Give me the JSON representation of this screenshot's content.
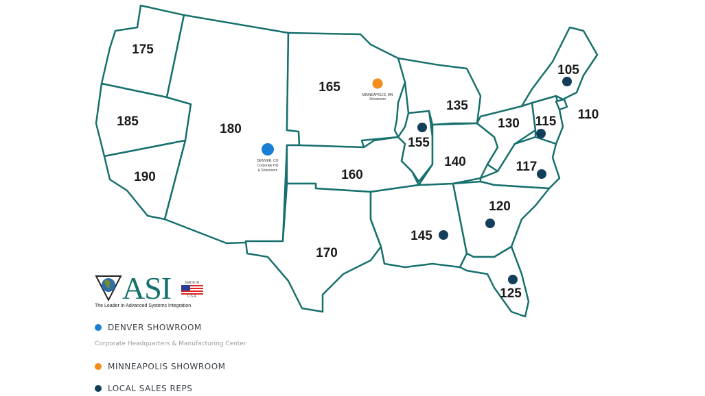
{
  "map": {
    "regions": [
      {
        "id": "northwest",
        "label": "175"
      },
      {
        "id": "northern-california",
        "label": "185"
      },
      {
        "id": "southern-california",
        "label": "190"
      },
      {
        "id": "mountain",
        "label": "180"
      },
      {
        "id": "northern-plains",
        "label": "165"
      },
      {
        "id": "central-plains",
        "label": "160"
      },
      {
        "id": "south-central",
        "label": "170"
      },
      {
        "id": "deep-south",
        "label": "145"
      },
      {
        "id": "illinois",
        "label": "155"
      },
      {
        "id": "great-lakes",
        "label": "135"
      },
      {
        "id": "ohio-valley",
        "label": "140"
      },
      {
        "id": "mid-atlantic-west",
        "label": "130"
      },
      {
        "id": "mid-atlantic-east",
        "label": "115"
      },
      {
        "id": "virginia-carolina",
        "label": "117"
      },
      {
        "id": "southeast",
        "label": "120"
      },
      {
        "id": "florida",
        "label": "125"
      },
      {
        "id": "new-england",
        "label": "105"
      },
      {
        "id": "new-york-metro",
        "label": "110"
      }
    ],
    "denver_marker": {
      "line1": "DENVER, CO",
      "line2": "Corporate HQ",
      "line3": "& Showroom",
      "color": "#1a7fd4"
    },
    "minneapolis_marker": {
      "line1": "MINNEAPOLIS, MN",
      "line2": "Showroom",
      "color": "#f28c1a"
    },
    "rep_color": "#123e5a",
    "border_color": "#17706e"
  },
  "logo": {
    "text": "ASI",
    "tagline": "The Leader In Advanced Systems Integration",
    "made_in": "MADE IN",
    "usa": "U.S.A."
  },
  "legend": {
    "denver": "DENVER SHOWROOM",
    "denver_sub": "Corporate Headquarters & Manufacturing Center",
    "minneapolis": "MINNEAPOLIS SHOWROOM",
    "reps": "LOCAL SALES REPS"
  }
}
